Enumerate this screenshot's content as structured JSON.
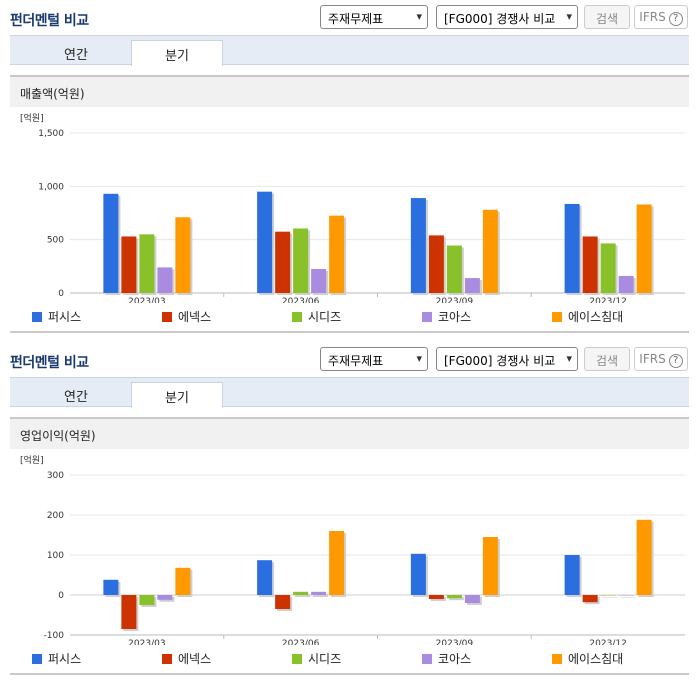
{
  "panels": [
    {
      "section_title": "펀더멘털 비교",
      "select_statement": "주재무제표",
      "select_compare": "[FG000] 경쟁사 비교",
      "search_label": "검색",
      "ifrs_label": "IFRS",
      "tabs": [
        "연간",
        "분기"
      ],
      "active_tab": 1,
      "chart_title": "매출액(억원)"
    },
    {
      "section_title": "펀더멘털 비교",
      "select_statement": "주재무제표",
      "select_compare": "[FG000] 경쟁사 비교",
      "search_label": "검색",
      "ifrs_label": "IFRS",
      "tabs": [
        "연간",
        "분기"
      ],
      "active_tab": 1,
      "chart_title": "영업이익(억원)"
    }
  ],
  "chart_data": [
    {
      "type": "bar",
      "title": "매출액(억원)",
      "unit_label": "[억원]",
      "categories": [
        "2023/03",
        "2023/06",
        "2023/09",
        "2023/12"
      ],
      "ylim": [
        0,
        1500
      ],
      "yticks": [
        0,
        500,
        1000,
        1500
      ],
      "ytick_labels": [
        "0",
        "500",
        "1,000",
        "1,500"
      ],
      "grid": true,
      "legend_position": "bottom",
      "series": [
        {
          "name": "퍼시스",
          "color": "#2a6ee0",
          "values": [
            930,
            950,
            890,
            835
          ]
        },
        {
          "name": "에넥스",
          "color": "#cc3300",
          "values": [
            530,
            575,
            540,
            530
          ]
        },
        {
          "name": "시디즈",
          "color": "#88c12a",
          "values": [
            550,
            605,
            445,
            465
          ]
        },
        {
          "name": "코아스",
          "color": "#a98ce0",
          "values": [
            240,
            225,
            140,
            160
          ]
        },
        {
          "name": "에이스침대",
          "color": "#ff9900",
          "values": [
            710,
            725,
            780,
            830
          ]
        }
      ]
    },
    {
      "type": "bar",
      "title": "영업이익(억원)",
      "unit_label": "[억원]",
      "categories": [
        "2023/03",
        "2023/06",
        "2023/09",
        "2023/12"
      ],
      "ylim": [
        -100,
        300
      ],
      "yticks": [
        -100,
        0,
        100,
        200,
        300
      ],
      "ytick_labels": [
        "-100",
        "0",
        "100",
        "200",
        "300"
      ],
      "grid": true,
      "legend_position": "bottom",
      "series": [
        {
          "name": "퍼시스",
          "color": "#2a6ee0",
          "values": [
            38,
            87,
            103,
            100
          ]
        },
        {
          "name": "에넥스",
          "color": "#cc3300",
          "values": [
            -85,
            -35,
            -10,
            -18
          ]
        },
        {
          "name": "시디즈",
          "color": "#88c12a",
          "values": [
            -25,
            8,
            -8,
            0
          ]
        },
        {
          "name": "코아스",
          "color": "#a98ce0",
          "values": [
            -12,
            8,
            -20,
            0
          ]
        },
        {
          "name": "에이스침대",
          "color": "#ff9900",
          "values": [
            68,
            160,
            145,
            188
          ]
        }
      ]
    }
  ]
}
